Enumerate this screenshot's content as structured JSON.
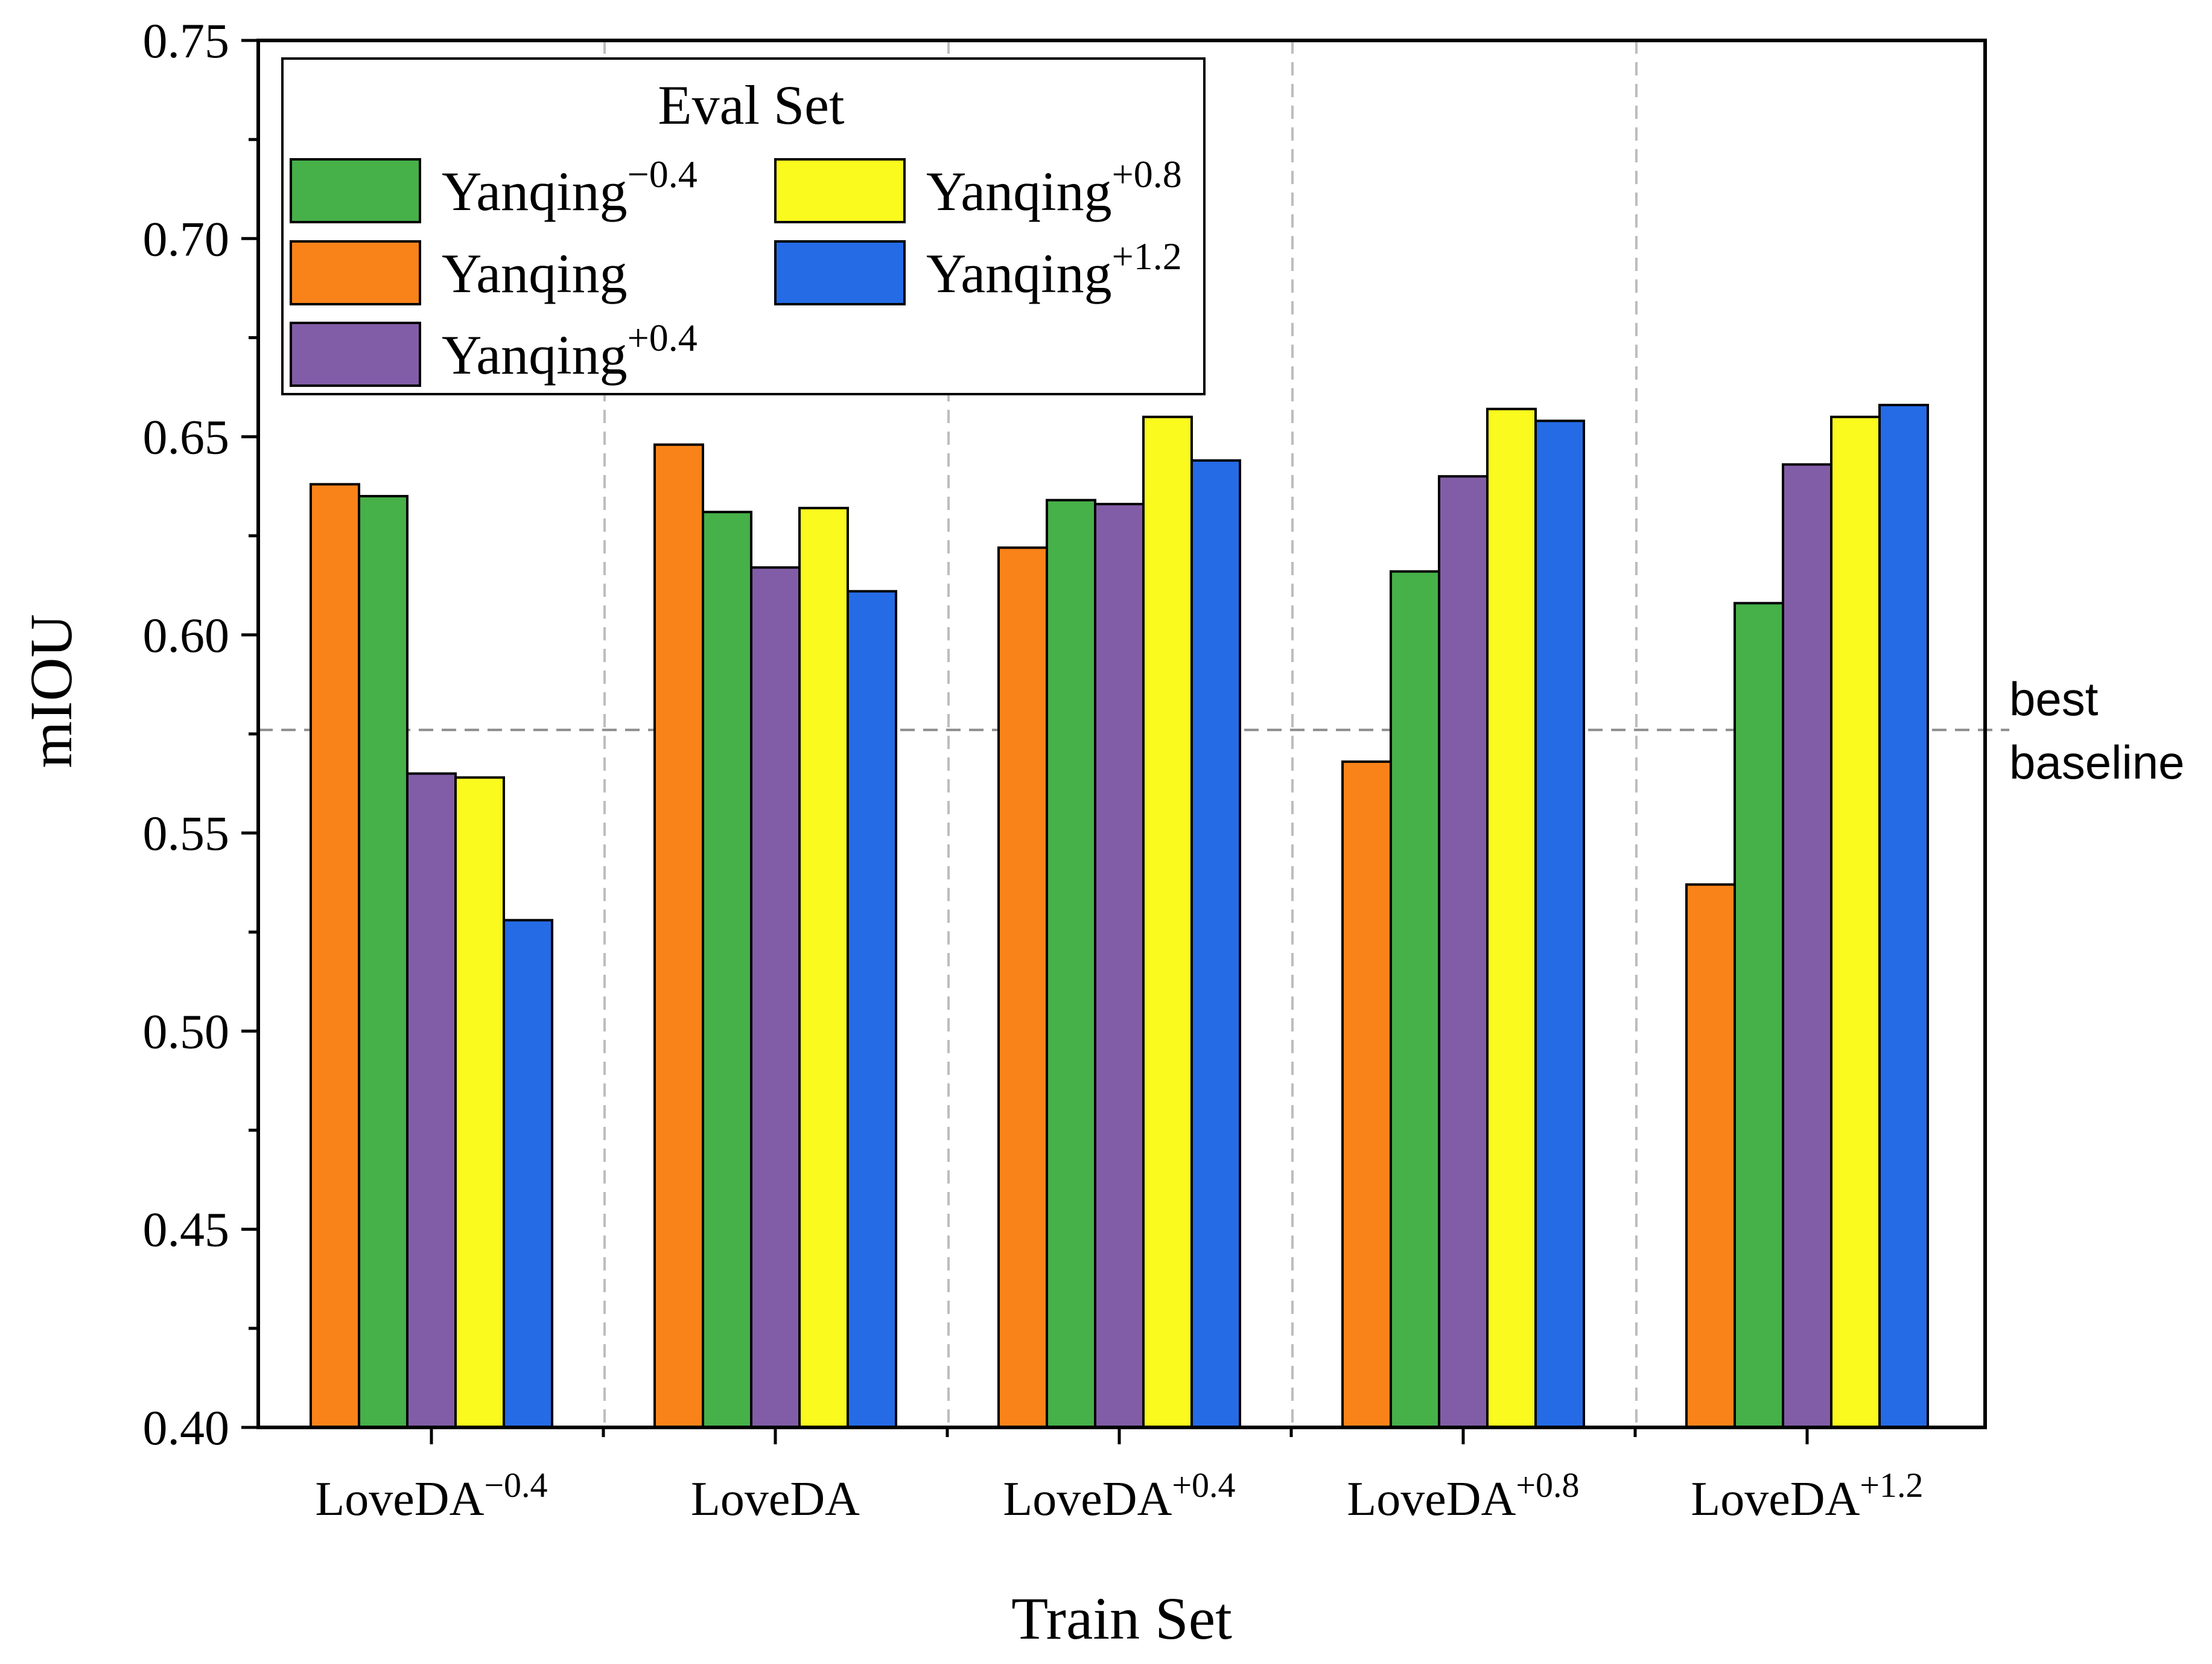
{
  "chart_data": {
    "type": "bar",
    "title": "",
    "xlabel": "Train Set",
    "ylabel": "mIOU",
    "ylim": [
      0.4,
      0.75
    ],
    "yticks": [
      "0.40",
      "0.45",
      "0.50",
      "0.55",
      "0.60",
      "0.65",
      "0.70",
      "0.75"
    ],
    "grid": false,
    "categories": [
      {
        "base": "LoveDA",
        "sup": "−0.4"
      },
      {
        "base": "LoveDA",
        "sup": ""
      },
      {
        "base": "LoveDA",
        "sup": "+0.4"
      },
      {
        "base": "LoveDA",
        "sup": "+0.8"
      },
      {
        "base": "LoveDA",
        "sup": "+1.2"
      }
    ],
    "legend": {
      "title": "Eval Set",
      "placement": "top-left"
    },
    "series": [
      {
        "name": "Yanqing",
        "sup": "",
        "color": "#F98319",
        "values": [
          0.638,
          0.648,
          0.622,
          0.568,
          0.537
        ]
      },
      {
        "name": "Yanqing",
        "sup": "−0.4",
        "color": "#46B049",
        "values": [
          0.635,
          0.631,
          0.634,
          0.616,
          0.608
        ]
      },
      {
        "name": "Yanqing",
        "sup": "+0.4",
        "color": "#825DA7",
        "values": [
          0.565,
          0.617,
          0.633,
          0.64,
          0.643
        ]
      },
      {
        "name": "Yanqing",
        "sup": "+0.8",
        "color": "#FAFA1E",
        "values": [
          0.564,
          0.632,
          0.655,
          0.657,
          0.655
        ]
      },
      {
        "name": "Yanqing",
        "sup": "+1.2",
        "color": "#256BE6",
        "values": [
          0.528,
          0.611,
          0.644,
          0.654,
          0.658
        ]
      }
    ],
    "legend_order": [
      1,
      3,
      0,
      4,
      2
    ],
    "reference_line": {
      "value": 0.576,
      "label_line1": "best",
      "label_line2": "baseline",
      "color": "#8C8C8C"
    }
  }
}
